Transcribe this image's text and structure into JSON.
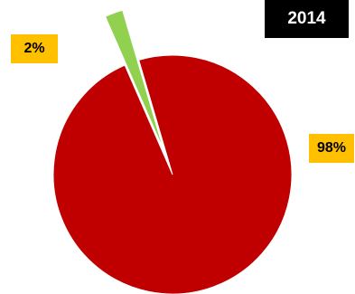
{
  "chart_data": {
    "type": "pie",
    "title": "2014",
    "categories": [
      "",
      ""
    ],
    "values": [
      98,
      2
    ],
    "data_labels": [
      "98%",
      "2%"
    ],
    "colors": [
      "#C00000",
      "#92D050"
    ],
    "exploded_slice": 1,
    "legend": "none",
    "label_background": "#FFC000"
  }
}
